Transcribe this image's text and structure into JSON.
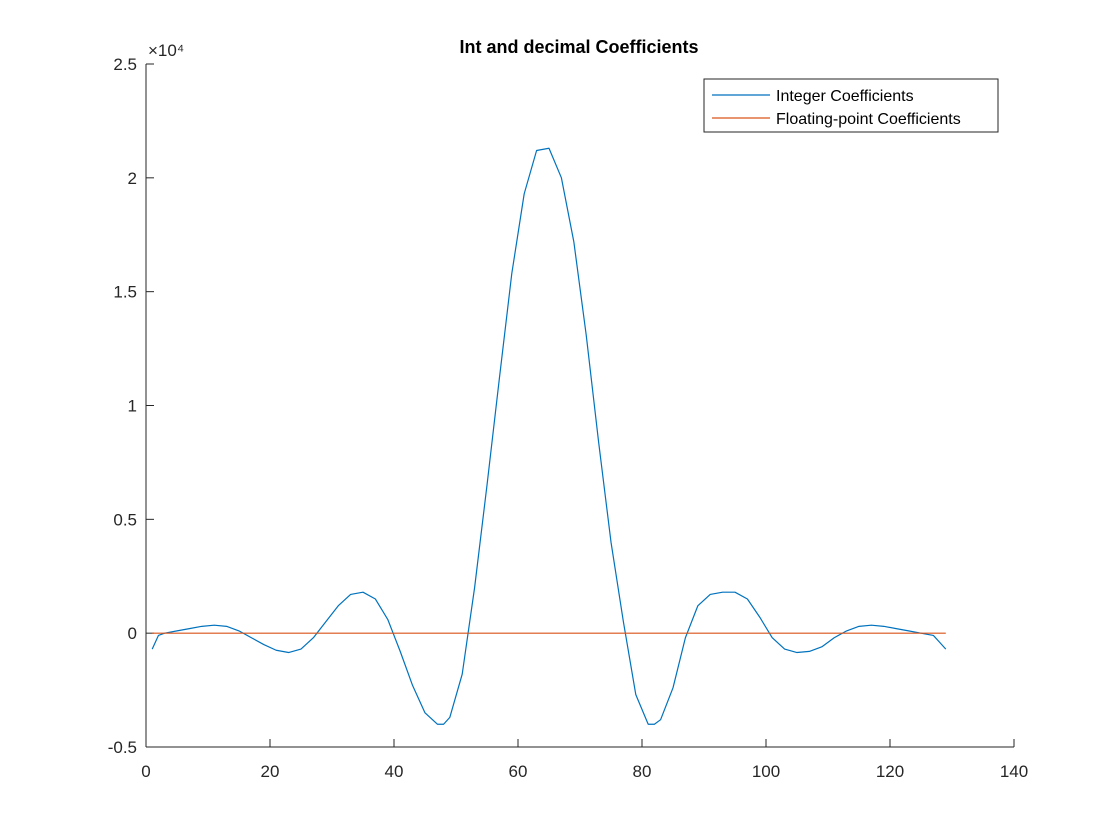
{
  "chart_data": {
    "type": "line",
    "title": "Int and decimal Coefficients",
    "xlabel": "",
    "ylabel": "",
    "xlim": [
      0,
      140
    ],
    "ylim": [
      -0.5,
      2.5
    ],
    "y_scale_exponent": "×10⁴",
    "y_scale_factor": 10000,
    "xticks": [
      0,
      20,
      40,
      60,
      80,
      100,
      120,
      140
    ],
    "xtick_labels": [
      "0",
      "20",
      "40",
      "60",
      "80",
      "100",
      "120",
      "140"
    ],
    "yticks": [
      -0.5,
      0,
      0.5,
      1,
      1.5,
      2,
      2.5
    ],
    "ytick_labels": [
      "-0.5",
      "0",
      "0.5",
      "1",
      "1.5",
      "2",
      "2.5"
    ],
    "grid": false,
    "legend_position": "top-right",
    "series": [
      {
        "name": "Integer Coefficients",
        "color": "#0072BD",
        "x": [
          1,
          2,
          3,
          5,
          7,
          9,
          11,
          13,
          15,
          17,
          19,
          21,
          23,
          25,
          27,
          29,
          31,
          33,
          35,
          37,
          39,
          41,
          43,
          45,
          47,
          48,
          49,
          51,
          53,
          55,
          57,
          59,
          61,
          63,
          65,
          67,
          69,
          71,
          73,
          75,
          77,
          79,
          81,
          82,
          83,
          85,
          87,
          89,
          91,
          93,
          95,
          97,
          99,
          101,
          103,
          105,
          107,
          109,
          111,
          113,
          115,
          117,
          119,
          121,
          123,
          125,
          127,
          128,
          129
        ],
        "values": [
          -0.07,
          -0.01,
          0.0,
          0.01,
          0.02,
          0.03,
          0.035,
          0.03,
          0.01,
          -0.02,
          -0.05,
          -0.075,
          -0.085,
          -0.07,
          -0.02,
          0.05,
          0.12,
          0.17,
          0.18,
          0.15,
          0.06,
          -0.08,
          -0.23,
          -0.35,
          -0.4,
          -0.4,
          -0.37,
          -0.18,
          0.2,
          0.65,
          1.12,
          1.58,
          1.93,
          2.12,
          2.13,
          2.0,
          1.72,
          1.31,
          0.84,
          0.4,
          0.05,
          -0.27,
          -0.4,
          -0.4,
          -0.38,
          -0.24,
          -0.02,
          0.12,
          0.17,
          0.18,
          0.18,
          0.15,
          0.07,
          -0.02,
          -0.07,
          -0.085,
          -0.08,
          -0.06,
          -0.02,
          0.01,
          0.03,
          0.035,
          0.03,
          0.02,
          0.01,
          0.0,
          -0.01,
          -0.04,
          -0.07
        ]
      },
      {
        "name": "Floating-point Coefficients",
        "color": "#D95319",
        "x": [
          1,
          129
        ],
        "values": [
          0,
          0
        ]
      }
    ]
  }
}
